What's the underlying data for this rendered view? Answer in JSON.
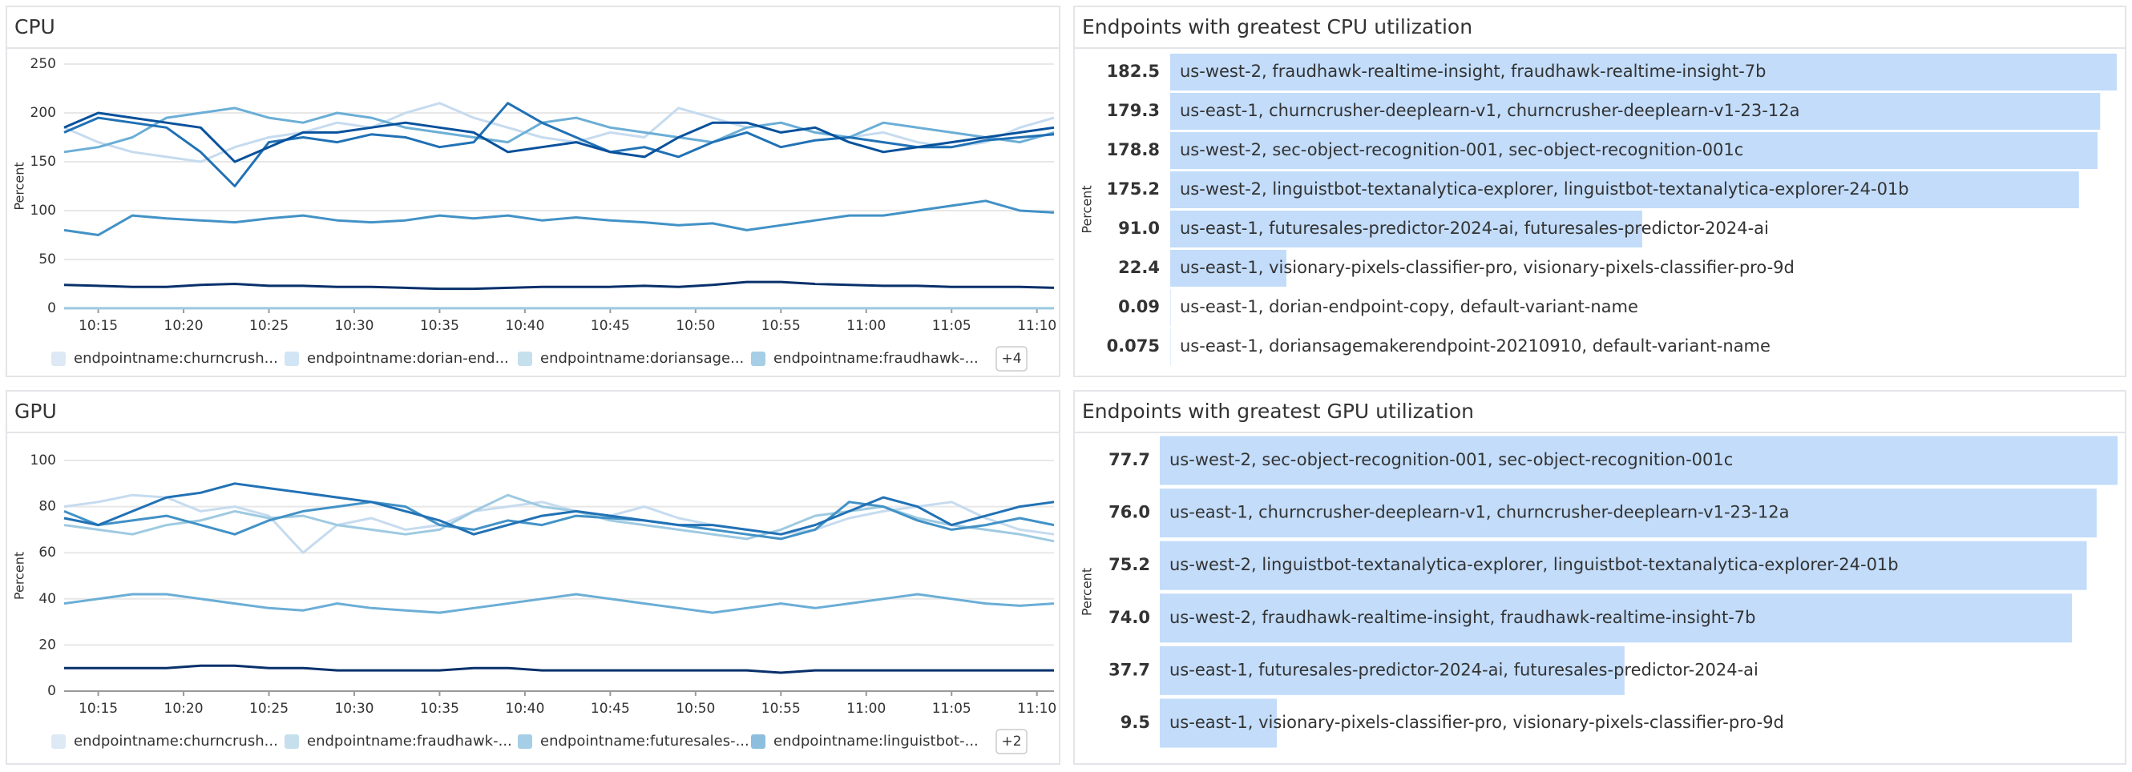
{
  "chart_data": [
    {
      "type": "line",
      "title": "CPU",
      "y_label": "Percent",
      "x": [
        "10:13",
        "10:15",
        "10:17",
        "10:19",
        "10:21",
        "10:23",
        "10:25",
        "10:27",
        "10:29",
        "10:31",
        "10:33",
        "10:35",
        "10:37",
        "10:39",
        "10:41",
        "10:43",
        "10:45",
        "10:47",
        "10:49",
        "10:51",
        "10:53",
        "10:55",
        "10:57",
        "10:59",
        "11:01",
        "11:03",
        "11:05",
        "11:07",
        "11:09",
        "11:11"
      ],
      "xlim": [
        "10:13",
        "11:11"
      ],
      "xticks": [
        "10:15",
        "10:20",
        "10:25",
        "10:30",
        "10:35",
        "10:40",
        "10:45",
        "10:50",
        "10:55",
        "11:00",
        "11:05",
        "11:10"
      ],
      "ylim": [
        0,
        250
      ],
      "yticks": [
        0,
        50,
        100,
        150,
        200,
        250
      ],
      "grid": true,
      "legend_more": "+4",
      "series": [
        {
          "name": "endpointname:churncrush...",
          "color": "#c6dbef",
          "values": [
            185,
            170,
            160,
            155,
            150,
            165,
            175,
            180,
            190,
            185,
            200,
            210,
            195,
            185,
            175,
            170,
            180,
            175,
            205,
            195,
            185,
            190,
            180,
            175,
            180,
            170,
            165,
            170,
            185,
            195
          ]
        },
        {
          "name": "endpointname:dorian-end...",
          "color": "#b3d3ec",
          "values": [
            0.09,
            0.09,
            0.09,
            0.09,
            0.09,
            0.09,
            0.09,
            0.09,
            0.09,
            0.09,
            0.09,
            0.09,
            0.09,
            0.09,
            0.09,
            0.09,
            0.09,
            0.09,
            0.09,
            0.09,
            0.09,
            0.09,
            0.09,
            0.09,
            0.09,
            0.09,
            0.09,
            0.09,
            0.09,
            0.09
          ]
        },
        {
          "name": "endpointname:doriansage...",
          "color": "#9ecae1",
          "values": [
            0.075,
            0.075,
            0.075,
            0.075,
            0.075,
            0.075,
            0.075,
            0.075,
            0.075,
            0.075,
            0.075,
            0.075,
            0.075,
            0.075,
            0.075,
            0.075,
            0.075,
            0.075,
            0.075,
            0.075,
            0.075,
            0.075,
            0.075,
            0.075,
            0.075,
            0.075,
            0.075,
            0.075,
            0.075,
            0.075
          ]
        },
        {
          "name": "endpointname:fraudhawk-...",
          "color": "#6baed6",
          "values": [
            160,
            165,
            175,
            195,
            200,
            205,
            195,
            190,
            200,
            195,
            185,
            180,
            175,
            170,
            190,
            195,
            185,
            180,
            175,
            170,
            185,
            190,
            180,
            175,
            190,
            185,
            180,
            175,
            170,
            180
          ]
        },
        {
          "color": "#4292c6",
          "values": [
            80,
            75,
            95,
            92,
            90,
            88,
            92,
            95,
            90,
            88,
            90,
            95,
            92,
            95,
            90,
            93,
            90,
            88,
            85,
            87,
            80,
            85,
            90,
            95,
            95,
            100,
            105,
            110,
            100,
            98
          ]
        },
        {
          "color": "#2171b5",
          "values": [
            180,
            195,
            190,
            185,
            160,
            125,
            170,
            175,
            170,
            178,
            175,
            165,
            170,
            210,
            190,
            175,
            160,
            165,
            155,
            170,
            180,
            165,
            172,
            175,
            170,
            165,
            165,
            172,
            175,
            178
          ]
        },
        {
          "color": "#08519c",
          "values": [
            185,
            200,
            195,
            190,
            185,
            150,
            165,
            180,
            180,
            185,
            190,
            185,
            180,
            160,
            165,
            170,
            160,
            155,
            175,
            190,
            190,
            180,
            185,
            170,
            160,
            165,
            170,
            175,
            180,
            185
          ]
        },
        {
          "color": "#08306b",
          "values": [
            24,
            23,
            22,
            22,
            24,
            25,
            23,
            23,
            22,
            22,
            21,
            20,
            20,
            21,
            22,
            22,
            22,
            23,
            22,
            24,
            27,
            27,
            25,
            24,
            23,
            23,
            22,
            22,
            22,
            21
          ]
        }
      ]
    },
    {
      "type": "bar",
      "title": "Endpoints with greatest CPU utilization",
      "y_label": "Percent",
      "color": "#c2dcfa",
      "categories": [
        "us-west-2, fraudhawk-realtime-insight, fraudhawk-realtime-insight-7b",
        "us-east-1, churncrusher-deeplearn-v1, churncrusher-deeplearn-v1-23-12a",
        "us-west-2, sec-object-recognition-001, sec-object-recognition-001c",
        "us-west-2, linguistbot-textanalytica-explorer, linguistbot-textanalytica-explorer-24-01b",
        "us-east-1, futuresales-predictor-2024-ai, futuresales-predictor-2024-ai",
        "us-east-1, visionary-pixels-classifier-pro, visionary-pixels-classifier-pro-9d",
        "us-east-1, dorian-endpoint-copy, default-variant-name",
        "us-east-1, doriansagemakerendpoint-20210910, default-variant-name"
      ],
      "values": [
        182.5,
        179.3,
        178.8,
        175.2,
        91.0,
        22.4,
        0.09,
        0.075
      ],
      "value_labels": [
        "182.5",
        "179.3",
        "178.8",
        "175.2",
        "91.0",
        "22.4",
        "0.09",
        "0.075"
      ]
    },
    {
      "type": "line",
      "title": "GPU",
      "y_label": "Percent",
      "x": [
        "10:13",
        "10:15",
        "10:17",
        "10:19",
        "10:21",
        "10:23",
        "10:25",
        "10:27",
        "10:29",
        "10:31",
        "10:33",
        "10:35",
        "10:37",
        "10:39",
        "10:41",
        "10:43",
        "10:45",
        "10:47",
        "10:49",
        "10:51",
        "10:53",
        "10:55",
        "10:57",
        "10:59",
        "11:01",
        "11:03",
        "11:05",
        "11:07",
        "11:09",
        "11:11"
      ],
      "xlim": [
        "10:13",
        "11:11"
      ],
      "xticks": [
        "10:15",
        "10:20",
        "10:25",
        "10:30",
        "10:35",
        "10:40",
        "10:45",
        "10:50",
        "10:55",
        "11:00",
        "11:05",
        "11:10"
      ],
      "ylim": [
        0,
        100
      ],
      "yticks": [
        0,
        20,
        40,
        60,
        80,
        100
      ],
      "grid": true,
      "legend_more": "+2",
      "series": [
        {
          "name": "endpointname:churncrush...",
          "color": "#c6dbef",
          "values": [
            80,
            82,
            85,
            84,
            78,
            80,
            76,
            60,
            72,
            75,
            70,
            72,
            78,
            80,
            82,
            78,
            76,
            80,
            75,
            72,
            70,
            68,
            70,
            75,
            78,
            80,
            82,
            75,
            70,
            68
          ]
        },
        {
          "name": "endpointname:fraudhawk-...",
          "color": "#9ecae1",
          "values": [
            72,
            70,
            68,
            72,
            74,
            78,
            75,
            76,
            72,
            70,
            68,
            70,
            78,
            85,
            80,
            78,
            74,
            72,
            70,
            68,
            66,
            70,
            76,
            78,
            80,
            75,
            72,
            70,
            68,
            65
          ]
        },
        {
          "name": "endpointname:futuresales-...",
          "color": "#6baed6",
          "values": [
            38,
            40,
            42,
            42,
            40,
            38,
            36,
            35,
            38,
            36,
            35,
            34,
            36,
            38,
            40,
            42,
            40,
            38,
            36,
            34,
            36,
            38,
            36,
            38,
            40,
            42,
            40,
            38,
            37,
            38
          ]
        },
        {
          "name": "endpointname:linguistbot-...",
          "color": "#4292c6",
          "values": [
            78,
            72,
            74,
            76,
            72,
            68,
            74,
            78,
            80,
            82,
            80,
            72,
            70,
            74,
            72,
            76,
            75,
            74,
            72,
            70,
            68,
            66,
            70,
            82,
            80,
            74,
            70,
            72,
            75,
            72
          ]
        },
        {
          "color": "#2171b5",
          "values": [
            75,
            72,
            78,
            84,
            86,
            90,
            88,
            86,
            84,
            82,
            78,
            74,
            68,
            72,
            76,
            78,
            76,
            74,
            72,
            72,
            70,
            68,
            72,
            78,
            84,
            80,
            72,
            76,
            80,
            82
          ]
        },
        {
          "color": "#08306b",
          "values": [
            10,
            10,
            10,
            10,
            11,
            11,
            10,
            10,
            9,
            9,
            9,
            9,
            10,
            10,
            9,
            9,
            9,
            9,
            9,
            9,
            9,
            8,
            9,
            9,
            9,
            9,
            9,
            9,
            9,
            9
          ]
        }
      ]
    },
    {
      "type": "bar",
      "title": "Endpoints with greatest GPU utilization",
      "y_label": "Percent",
      "color": "#c2dcfa",
      "categories": [
        "us-west-2, sec-object-recognition-001, sec-object-recognition-001c",
        "us-east-1, churncrusher-deeplearn-v1, churncrusher-deeplearn-v1-23-12a",
        "us-west-2, linguistbot-textanalytica-explorer, linguistbot-textanalytica-explorer-24-01b",
        "us-west-2, fraudhawk-realtime-insight, fraudhawk-realtime-insight-7b",
        "us-east-1, futuresales-predictor-2024-ai, futuresales-predictor-2024-ai",
        "us-east-1, visionary-pixels-classifier-pro, visionary-pixels-classifier-pro-9d"
      ],
      "values": [
        77.7,
        76.0,
        75.2,
        74.0,
        37.7,
        9.5
      ],
      "value_labels": [
        "77.7",
        "76.0",
        "75.2",
        "74.0",
        "37.7",
        "9.5"
      ]
    }
  ]
}
